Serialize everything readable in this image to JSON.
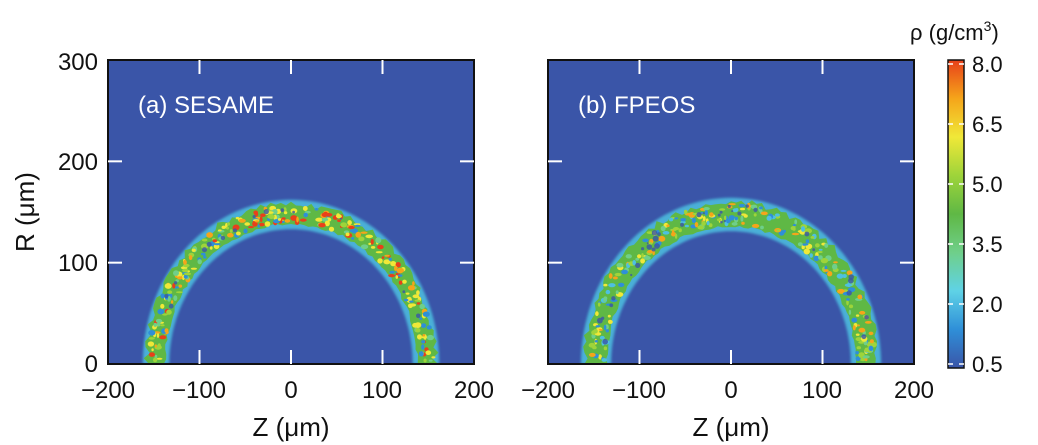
{
  "chart_data": [
    {
      "type": "heatmap",
      "panel_label": "(a) SESAME",
      "xlabel": "Z (μm)",
      "ylabel": "R (μm)",
      "xlim": [
        -200,
        200
      ],
      "ylim": [
        0,
        300
      ],
      "x_ticks": [
        "−200",
        "−100",
        "0",
        "100",
        "200"
      ],
      "y_ticks": [
        "0",
        "100",
        "200",
        "300"
      ],
      "shell": {
        "center_z": 0,
        "outer_radius": 158,
        "inner_radius": 138,
        "max_density": 8.0
      }
    },
    {
      "type": "heatmap",
      "panel_label": "(b) FPEOS",
      "xlabel": "Z (μm)",
      "xlim": [
        -200,
        200
      ],
      "ylim": [
        0,
        300
      ],
      "x_ticks": [
        "−200",
        "−100",
        "0",
        "100",
        "200"
      ],
      "shell": {
        "center_z": 0,
        "outer_radius": 160,
        "inner_radius": 136,
        "max_density": 6.5
      }
    }
  ],
  "colorbar": {
    "title_base": "ρ (g/cm",
    "title_sup": "3",
    "title_end": ")",
    "min": 0.5,
    "max": 8.0,
    "ticks": [
      "8.0",
      "6.5",
      "5.0",
      "3.5",
      "2.0",
      "0.5"
    ],
    "tick_values": [
      8.0,
      6.5,
      5.0,
      3.5,
      2.0,
      0.5
    ],
    "colors": [
      "#3a55a8",
      "#2f8fd8",
      "#5fd2e6",
      "#6fcf8a",
      "#5fb845",
      "#9ed43a",
      "#f0e838",
      "#f5a51a",
      "#e8401a"
    ]
  },
  "colors": {
    "background": "#3a55a8"
  }
}
